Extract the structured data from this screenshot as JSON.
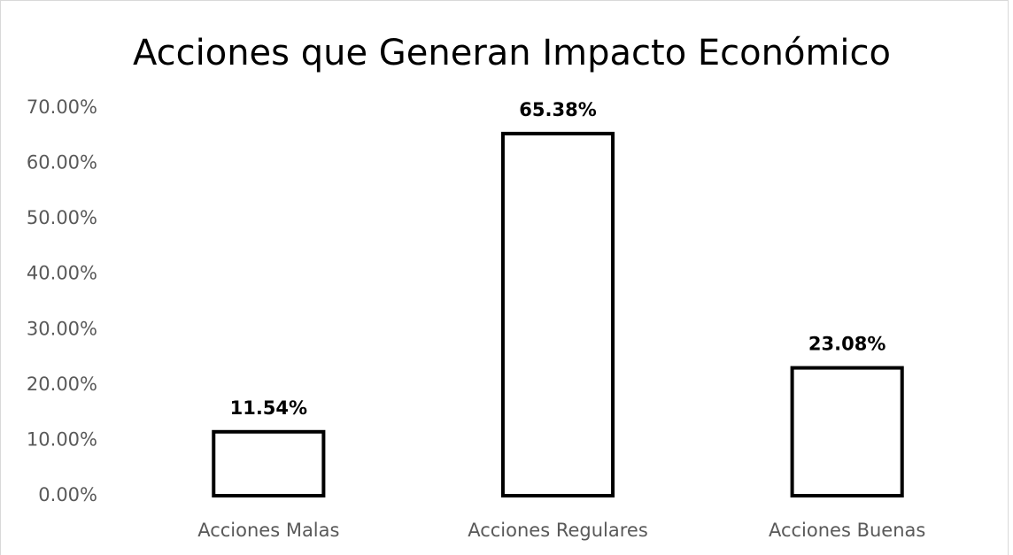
{
  "chart_data": {
    "type": "bar",
    "title": "Acciones que Generan Impacto Económico",
    "categories": [
      "Acciones Malas",
      "Acciones Regulares",
      "Acciones Buenas"
    ],
    "values": [
      11.54,
      65.38,
      23.08
    ],
    "value_labels": [
      "11.54%",
      "65.38%",
      "23.08%"
    ],
    "color": "#ffffff",
    "edge_color": "#000000",
    "ylim": [
      0,
      70
    ],
    "yticks": [
      {
        "value": 0,
        "label": "0.00%"
      },
      {
        "value": 10,
        "label": "10.00%"
      },
      {
        "value": 20,
        "label": "20.00%"
      },
      {
        "value": 30,
        "label": "30.00%"
      },
      {
        "value": 40,
        "label": "40.00%"
      },
      {
        "value": 50,
        "label": "50.00%"
      },
      {
        "value": 60,
        "label": "60.00%"
      },
      {
        "value": 70,
        "label": "70.00%"
      }
    ],
    "grid": false
  }
}
